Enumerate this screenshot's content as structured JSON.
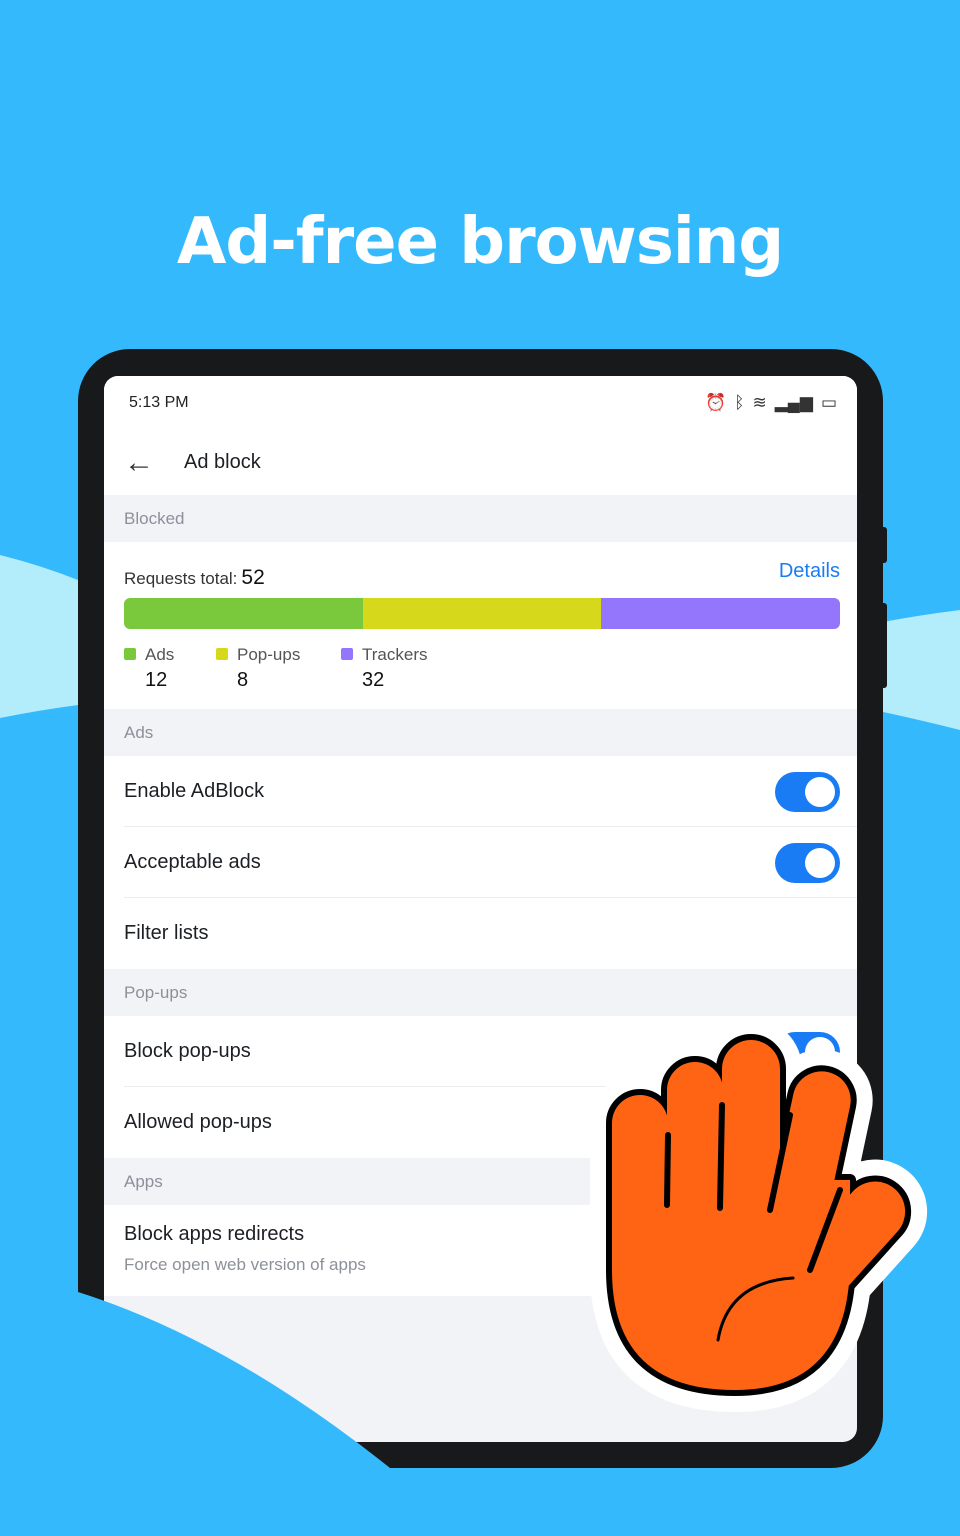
{
  "headline": "Ad-free browsing",
  "status_bar": {
    "time": "5:13 PM",
    "icons": [
      "alarm-icon",
      "bluetooth-icon",
      "wifi-icon",
      "signal-icon",
      "battery-icon"
    ]
  },
  "toolbar": {
    "title": "Ad block"
  },
  "blocked": {
    "header": "Blocked",
    "requests_label": "Requests total:",
    "requests_total": "52",
    "details_label": "Details",
    "categories": [
      {
        "label": "Ads",
        "value": "12",
        "color": "#7ac93c"
      },
      {
        "label": "Pop-ups",
        "value": "8",
        "color": "#d5d81b"
      },
      {
        "label": "Trackers",
        "value": "32",
        "color": "#9376fb"
      }
    ]
  },
  "ads": {
    "header": "Ads",
    "enable_adblock": "Enable AdBlock",
    "enable_adblock_on": true,
    "acceptable_ads": "Acceptable ads",
    "acceptable_ads_on": true,
    "filter_lists": "Filter lists"
  },
  "popups": {
    "header": "Pop-ups",
    "block_popups": "Block pop-ups",
    "block_popups_on": true,
    "allowed_popups": "Allowed pop-ups"
  },
  "apps": {
    "header": "Apps",
    "block_redirects": "Block apps redirects",
    "block_redirects_sub": "Force open web version of apps"
  },
  "colors": {
    "background": "#35b9fd",
    "accent": "#1a7cf5",
    "hand": "#ff6414"
  }
}
